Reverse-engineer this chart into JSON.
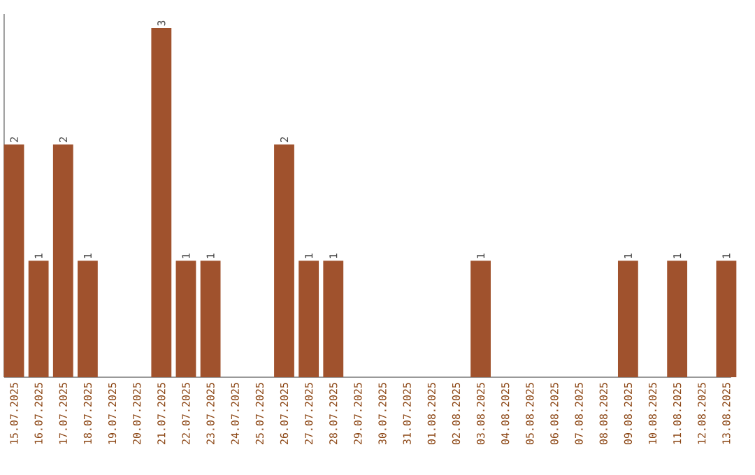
{
  "chart_data": {
    "type": "bar",
    "color": "#a0522d",
    "categories": [
      "15.07.2025",
      "16.07.2025",
      "17.07.2025",
      "18.07.2025",
      "19.07.2025",
      "20.07.2025",
      "21.07.2025",
      "22.07.2025",
      "23.07.2025",
      "24.07.2025",
      "25.07.2025",
      "26.07.2025",
      "27.07.2025",
      "28.07.2025",
      "29.07.2025",
      "30.07.2025",
      "31.07.2025",
      "01.08.2025",
      "02.08.2025",
      "03.08.2025",
      "04.08.2025",
      "05.08.2025",
      "06.08.2025",
      "07.08.2025",
      "08.08.2025",
      "09.08.2025",
      "10.08.2025",
      "11.08.2025",
      "12.08.2025",
      "13.08.2025"
    ],
    "values": [
      2,
      1,
      2,
      1,
      0,
      0,
      3,
      1,
      1,
      0,
      0,
      2,
      1,
      1,
      0,
      0,
      0,
      0,
      0,
      1,
      0,
      0,
      0,
      0,
      0,
      1,
      0,
      1,
      0,
      1
    ],
    "value_labels": [
      "2",
      "1",
      "2",
      "1",
      null,
      null,
      "3",
      "1",
      "1",
      null,
      null,
      "2",
      "1",
      "1",
      null,
      null,
      null,
      null,
      null,
      "1",
      null,
      null,
      null,
      null,
      null,
      "1",
      null,
      "1",
      null,
      "1"
    ],
    "relative": false
  }
}
